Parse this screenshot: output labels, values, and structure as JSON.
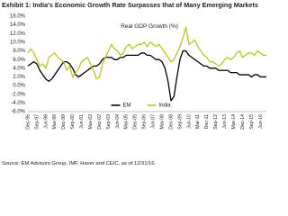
{
  "chart_data": {
    "type": "line",
    "title": "Exhibit 1: India's Economic Growth Rate Surpasses that of Many Emerging Markets",
    "subtitle": "Real GDP Growth (%)",
    "source": "Source: EM Advisors Group, IMF, Haver and CEIC, as of 12/31/16.",
    "categories": [
      "Dec-96",
      null,
      null,
      "Sep-97",
      null,
      null,
      "Jun-98",
      null,
      null,
      "Mar-99",
      null,
      null,
      "Dec-99",
      null,
      null,
      "Sep-00",
      null,
      null,
      "Jun-01",
      null,
      null,
      "Mar-02",
      null,
      null,
      "Dec-02",
      null,
      null,
      "Sep-03",
      null,
      null,
      "Jun-04",
      null,
      null,
      "Mar-05",
      null,
      null,
      "Dec-05",
      null,
      null,
      "Sep-06",
      null,
      null,
      "Jun-07",
      null,
      null,
      "Mar-08",
      null,
      null,
      "Dec-08",
      null,
      null,
      "Sep-09",
      null,
      null,
      "Jun-10",
      null,
      null,
      "Mar-11",
      null,
      null,
      "Dec-11",
      null,
      null,
      "Sep-12",
      null,
      null,
      "Jun-13",
      null,
      null,
      "Mar-14",
      null,
      null,
      "Dec-14",
      null,
      null,
      "Sep-15",
      null,
      null,
      "Jun-16",
      null,
      null
    ],
    "series": [
      {
        "name": "EM",
        "color": "#000000",
        "values": [
          4.5,
          5.0,
          5.5,
          5.0,
          3.5,
          2.5,
          1.5,
          1.0,
          1.5,
          2.5,
          3.5,
          4.5,
          5.5,
          5.5,
          5.0,
          4.0,
          2.5,
          2.0,
          2.5,
          3.0,
          3.5,
          4.0,
          4.5,
          4.5,
          5.0,
          6.0,
          6.5,
          6.5,
          6.5,
          6.0,
          6.0,
          6.5,
          6.5,
          7.0,
          7.0,
          7.0,
          7.0,
          7.0,
          7.5,
          7.5,
          7.0,
          7.0,
          6.5,
          6.0,
          6.0,
          5.5,
          4.0,
          1.0,
          -3.5,
          -2.5,
          2.0,
          6.0,
          8.0,
          8.0,
          7.0,
          6.5,
          6.0,
          5.5,
          5.0,
          4.5,
          4.5,
          4.0,
          4.0,
          4.0,
          3.5,
          3.5,
          3.5,
          3.5,
          3.0,
          3.0,
          3.0,
          2.5,
          2.5,
          2.5,
          2.5,
          2.0,
          2.5,
          2.5,
          2.0,
          2.0,
          2.0
        ]
      },
      {
        "name": "India",
        "color": "#bcc71e",
        "values": [
          7.5,
          8.5,
          7.5,
          6.0,
          4.5,
          5.0,
          4.0,
          6.5,
          7.0,
          7.5,
          6.5,
          6.0,
          5.5,
          3.5,
          4.5,
          2.0,
          3.0,
          4.0,
          5.5,
          6.0,
          6.5,
          5.0,
          3.5,
          1.5,
          2.0,
          5.0,
          6.5,
          8.0,
          9.5,
          8.5,
          8.0,
          7.0,
          7.5,
          9.0,
          9.5,
          8.5,
          9.0,
          9.5,
          9.5,
          10.0,
          9.0,
          10.0,
          9.5,
          9.0,
          9.5,
          8.5,
          7.5,
          6.5,
          5.5,
          6.0,
          7.5,
          9.0,
          11.0,
          13.5,
          9.5,
          10.0,
          10.5,
          9.0,
          8.0,
          7.0,
          6.5,
          5.5,
          5.5,
          5.0,
          4.5,
          5.0,
          6.0,
          6.5,
          6.0,
          6.5,
          7.5,
          8.0,
          6.5,
          7.0,
          7.5,
          7.5,
          7.0,
          8.0,
          7.5,
          7.0,
          7.0
        ]
      }
    ],
    "ylim": [
      -6,
      16
    ],
    "yticks": [
      {
        "value": -6,
        "label": "-6.0%"
      },
      {
        "value": -4,
        "label": "-4.0%"
      },
      {
        "value": -2,
        "label": "-2.0%"
      },
      {
        "value": 0,
        "label": "0.0%"
      },
      {
        "value": 2,
        "label": "2.0%"
      },
      {
        "value": 4,
        "label": "4.0%"
      },
      {
        "value": 6,
        "label": "6.0%"
      },
      {
        "value": 8,
        "label": "8.0%"
      },
      {
        "value": 10,
        "label": "10.0%"
      },
      {
        "value": 12,
        "label": "12.0%"
      },
      {
        "value": 14,
        "label": "14.0%"
      },
      {
        "value": 16,
        "label": "16.0%"
      }
    ],
    "legend": "bottom"
  }
}
